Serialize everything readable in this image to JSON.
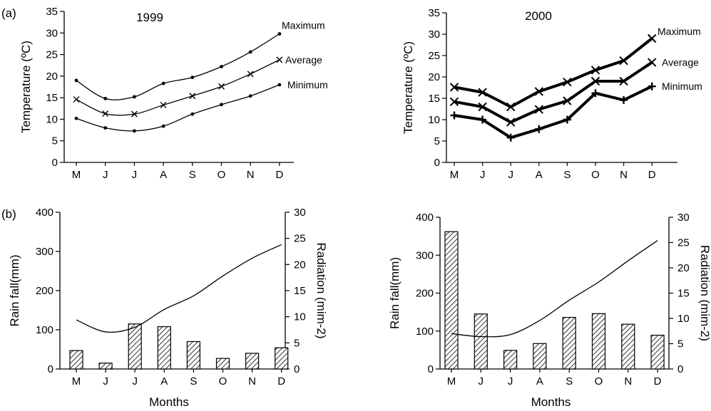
{
  "panel_labels": {
    "a": "(a)",
    "b": "(b)"
  },
  "chart_data": [
    {
      "type": "line",
      "title": "1999",
      "ylabel": "Temperature (ºC)",
      "xlabel": "",
      "categories": [
        "M",
        "J",
        "J",
        "A",
        "S",
        "O",
        "N",
        "D"
      ],
      "ylim": [
        0,
        35
      ],
      "yticks": [
        0,
        5,
        10,
        15,
        20,
        25,
        30,
        35
      ],
      "series": [
        {
          "name": "Maximum",
          "marker": "dot",
          "values": [
            19.0,
            14.8,
            15.2,
            18.3,
            19.7,
            22.2,
            25.6,
            29.8
          ]
        },
        {
          "name": "Average",
          "marker": "x",
          "values": [
            14.6,
            11.3,
            11.2,
            13.3,
            15.4,
            17.6,
            20.5,
            23.8
          ]
        },
        {
          "name": "Minimum",
          "marker": "dot",
          "values": [
            10.2,
            8.0,
            7.3,
            8.4,
            11.2,
            13.4,
            15.4,
            18.0
          ]
        }
      ]
    },
    {
      "type": "line",
      "title": "2000",
      "ylabel": "Temperature (ºC)",
      "xlabel": "",
      "categories": [
        "M",
        "J",
        "J",
        "A",
        "S",
        "O",
        "N",
        "D"
      ],
      "ylim": [
        0,
        35
      ],
      "yticks": [
        0,
        5,
        10,
        15,
        20,
        25,
        30,
        35
      ],
      "series": [
        {
          "name": "Maximum",
          "marker": "x",
          "values": [
            17.6,
            16.4,
            13.0,
            16.6,
            18.8,
            21.6,
            23.8,
            29.0
          ]
        },
        {
          "name": "Average",
          "marker": "x",
          "values": [
            14.2,
            13.0,
            9.4,
            12.4,
            14.4,
            19.0,
            19.0,
            23.4
          ]
        },
        {
          "name": "Minimum",
          "marker": "plus",
          "values": [
            11.0,
            10.0,
            5.8,
            7.8,
            10.0,
            16.2,
            14.6,
            17.8
          ]
        }
      ]
    },
    {
      "type": "bar",
      "title": "",
      "xlabel": "Months",
      "ylabel": "Rain fall(mm)",
      "y2label": "Radiation (mim-2)",
      "categories": [
        "M",
        "J",
        "J",
        "A",
        "S",
        "O",
        "N",
        "D"
      ],
      "ylim": [
        0,
        400
      ],
      "yticks": [
        0,
        100,
        200,
        300,
        400
      ],
      "y2lim": [
        0,
        30
      ],
      "y2ticks": [
        0,
        5,
        10,
        15,
        20,
        25,
        30
      ],
      "series": [
        {
          "kind": "bar",
          "axis": "left",
          "values": [
            47,
            15,
            115,
            108,
            70,
            27,
            40,
            54
          ]
        },
        {
          "kind": "line",
          "axis": "right",
          "values": [
            9.4,
            7.1,
            8.0,
            11.4,
            14.0,
            17.8,
            21.2,
            23.8
          ]
        }
      ]
    },
    {
      "type": "bar",
      "title": "",
      "xlabel": "Months",
      "ylabel": "Rain fall(mm)",
      "y2label": "Radiation (mim-2)",
      "categories": [
        "M",
        "J",
        "J",
        "A",
        "S",
        "O",
        "N",
        "D"
      ],
      "ylim": [
        0,
        400
      ],
      "yticks": [
        0,
        100,
        200,
        300,
        400
      ],
      "y2lim": [
        0,
        30
      ],
      "y2ticks": [
        0,
        5,
        10,
        15,
        20,
        25,
        30
      ],
      "series": [
        {
          "kind": "bar",
          "axis": "left",
          "values": [
            362,
            145,
            49,
            67,
            136,
            146,
            118,
            89
          ]
        },
        {
          "kind": "line",
          "axis": "right",
          "values": [
            7.0,
            6.4,
            6.8,
            9.6,
            13.6,
            17.2,
            21.4,
            25.4
          ]
        }
      ]
    }
  ]
}
